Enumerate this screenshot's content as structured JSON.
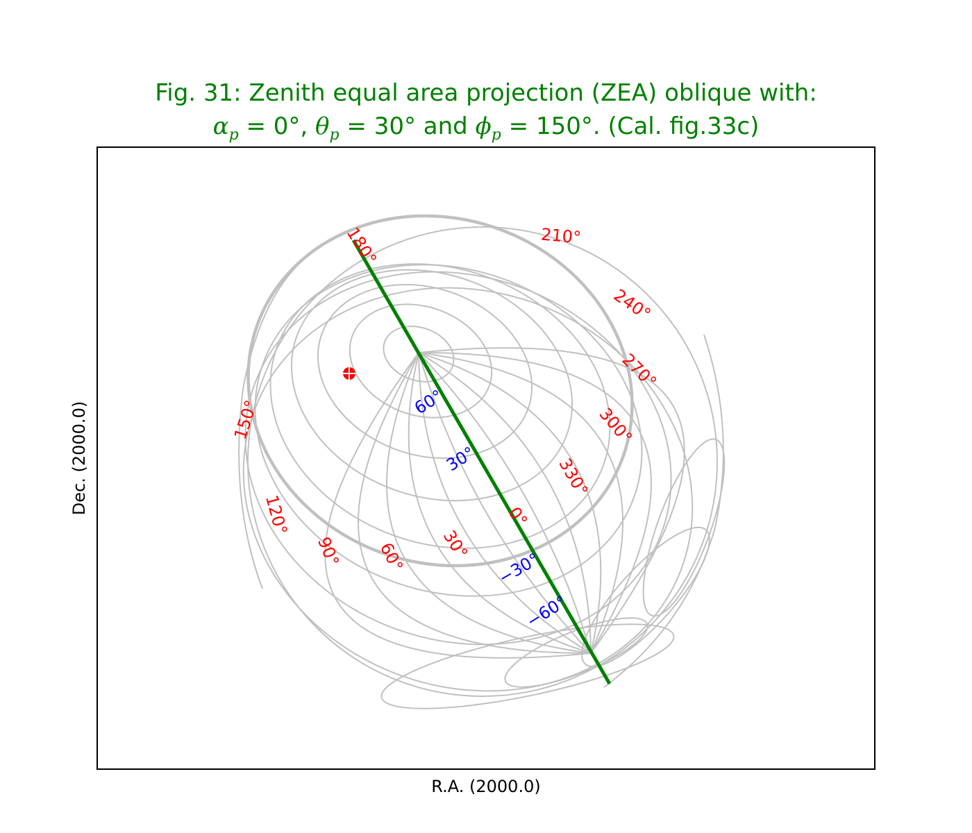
{
  "title": {
    "line1": "Fig. 31: Zenith equal area projection (ZEA) oblique with:",
    "line2": {
      "alpha_sym": "α",
      "alpha_sub": "p",
      "alpha_val": " = 0°, ",
      "theta_sym": "θ",
      "theta_sub": "p",
      "theta_val": " = 30°",
      "and": "  and ",
      "phi_sym": "ϕ",
      "phi_sub": "p",
      "phi_val": " = 150°.  (Cal. fig.33c)"
    }
  },
  "axes": {
    "xlabel": "R.A. (2000.0)",
    "ylabel": "Dec. (2000.0)"
  },
  "colors": {
    "title": "#008000",
    "graticule": "#c0c0c0",
    "longitude_labels": "#ff0000",
    "latitude_labels": "#0000ff",
    "prime_meridian": "#008000",
    "marker": "#ff0000",
    "frame": "#000000"
  },
  "longitude_labels": [
    "180°",
    "210°",
    "240°",
    "270°",
    "300°",
    "330°",
    "0°",
    "30°",
    "60°",
    "90°",
    "120°",
    "150°"
  ],
  "latitude_labels": [
    "60°",
    "30°",
    "−30°",
    "−60°"
  ],
  "marker": {
    "shape": "circle-with-cross"
  }
}
